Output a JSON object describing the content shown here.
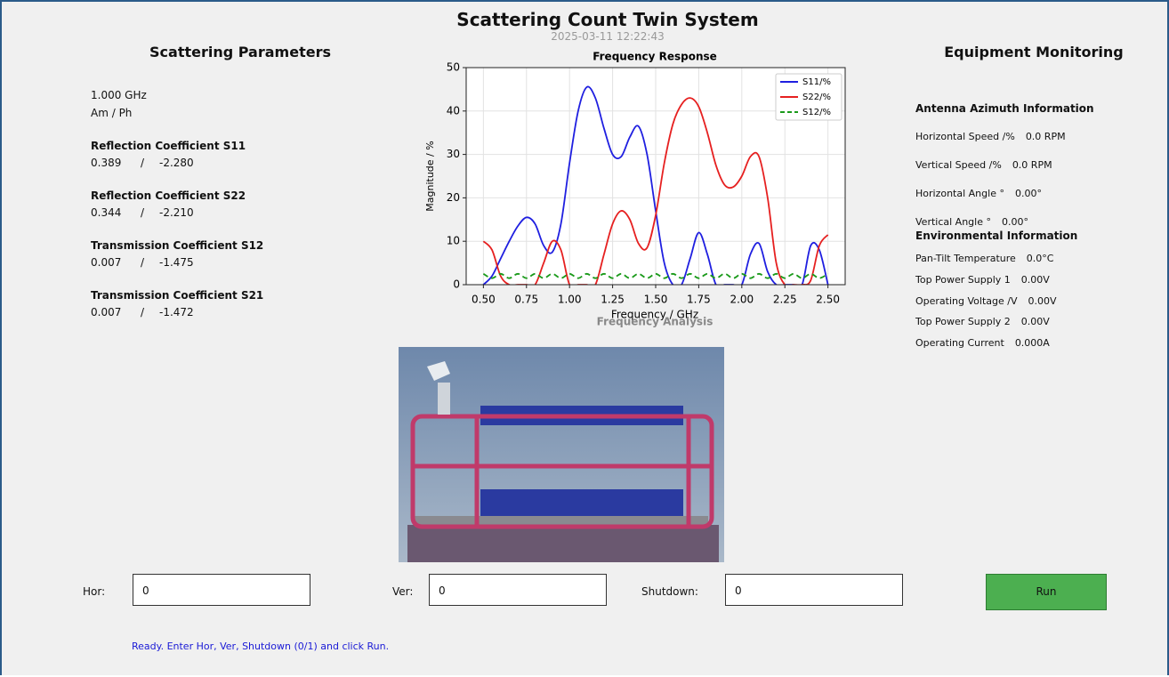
{
  "header": {
    "title": "Scattering Count Twin System",
    "timestamp": "2025-03-11 12:22:43"
  },
  "left_panel": {
    "heading": "Scattering Parameters",
    "frequency": "1.000 GHz",
    "mode": "Am / Ph",
    "separator": "/",
    "params": [
      {
        "label": "Reflection Coefficient S11",
        "amplitude": "0.389",
        "phase": "-2.280"
      },
      {
        "label": "Reflection Coefficient S22",
        "amplitude": "0.344",
        "phase": "-2.210"
      },
      {
        "label": "Transmission Coefficient S12",
        "amplitude": "0.007",
        "phase": "-1.475"
      },
      {
        "label": "Transmission Coefficient S21",
        "amplitude": "0.007",
        "phase": "-1.472"
      }
    ]
  },
  "chart_data": {
    "type": "line",
    "title": "Frequency Response",
    "subtitle": "Frequency Analysis",
    "xlabel": "Frequency / GHz",
    "ylabel": "Magnitude / %",
    "xlim": [
      0.4,
      2.6
    ],
    "ylim": [
      0,
      50
    ],
    "xticks": [
      {
        "value": 0.5,
        "label": "0.50"
      },
      {
        "value": 0.75,
        "label": "0.75"
      },
      {
        "value": 1,
        "label": "1.00"
      },
      {
        "value": 1.25,
        "label": "1.25"
      },
      {
        "value": 1.5,
        "label": "1.50"
      },
      {
        "value": 1.75,
        "label": "1.75"
      },
      {
        "value": 2,
        "label": "2.00"
      },
      {
        "value": 2.25,
        "label": "2.25"
      },
      {
        "value": 2.5,
        "label": "2.50"
      }
    ],
    "yticks": [
      0,
      10,
      20,
      30,
      40,
      50
    ],
    "grid": true,
    "legend": "upper right",
    "x": [
      0.5,
      0.55,
      0.6,
      0.65,
      0.7,
      0.75,
      0.8,
      0.85,
      0.9,
      0.95,
      1.0,
      1.05,
      1.1,
      1.15,
      1.2,
      1.25,
      1.3,
      1.35,
      1.4,
      1.45,
      1.5,
      1.55,
      1.6,
      1.65,
      1.7,
      1.75,
      1.8,
      1.85,
      1.9,
      1.95,
      2.0,
      2.05,
      2.1,
      2.15,
      2.2,
      2.25,
      2.3,
      2.35,
      2.4,
      2.45,
      2.5
    ],
    "series": [
      {
        "name": "S11/%",
        "color": "#1f1fe0",
        "dash": false,
        "values": [
          0,
          2,
          6,
          10,
          13.5,
          15.5,
          14,
          9,
          7.5,
          14,
          28,
          40,
          45.5,
          43,
          36,
          30,
          29.5,
          34,
          36.5,
          30,
          17,
          5,
          0,
          0,
          6,
          12,
          7,
          0,
          0,
          0,
          0,
          7,
          9.5,
          3,
          0,
          0,
          0,
          0,
          9,
          8,
          0
        ]
      },
      {
        "name": "S22/%",
        "color": "#e62020",
        "dash": false,
        "values": [
          10,
          8,
          2,
          0,
          0,
          0,
          0,
          5,
          10,
          8,
          0,
          0,
          0,
          0,
          7,
          14,
          17,
          15,
          9.5,
          8.5,
          16,
          28,
          37,
          41.5,
          43,
          41,
          35,
          27.5,
          23,
          22.5,
          25,
          29.5,
          29.5,
          20,
          5,
          0,
          0,
          0,
          1,
          9,
          11.5
        ]
      },
      {
        "name": "S12/%",
        "color": "#1a9a1a",
        "dash": true,
        "values": [
          2.5,
          1.5,
          2.5,
          1.5,
          2.5,
          1.5,
          2.5,
          1.5,
          2.5,
          1.5,
          2.5,
          1.5,
          2.5,
          1.5,
          2.5,
          1.5,
          2.5,
          1.5,
          2.5,
          1.5,
          2.5,
          1.5,
          2.5,
          1.5,
          2.5,
          1.5,
          2.5,
          1.5,
          2.5,
          1.5,
          2.5,
          1.5,
          2.5,
          1.5,
          2.5,
          1.5,
          2.5,
          1.5,
          2.5,
          1.5,
          2.5
        ]
      }
    ]
  },
  "right_panel": {
    "heading": "Equipment Monitoring",
    "azimuth": {
      "heading": "Antenna Azimuth Information",
      "rows": [
        {
          "label": "Horizontal Speed /%",
          "value": "0.0 RPM"
        },
        {
          "label": "Vertical Speed /%",
          "value": "0.0 RPM"
        },
        {
          "label": "Horizontal Angle °",
          "value": "0.00°"
        },
        {
          "label": "Vertical Angle °",
          "value": "0.00°"
        }
      ]
    },
    "environment": {
      "heading": "Environmental Information",
      "rows": [
        {
          "label": "Pan-Tilt Temperature",
          "value": "0.0°C"
        },
        {
          "label": "Top Power Supply 1",
          "value": "0.00V"
        },
        {
          "label": "Operating Voltage /V",
          "value": "0.00V"
        },
        {
          "label": "Top Power Supply 2",
          "value": "0.00V"
        },
        {
          "label": "Operating Current",
          "value": "0.000A"
        }
      ]
    }
  },
  "controls": {
    "fields": [
      {
        "label": "Hor:",
        "value": "0"
      },
      {
        "label": "Ver:",
        "value": "0"
      },
      {
        "label": "Shutdown:",
        "value": "0"
      }
    ],
    "button": "Run",
    "status": "Ready. Enter Hor, Ver, Shutdown (0/1) and click Run."
  }
}
